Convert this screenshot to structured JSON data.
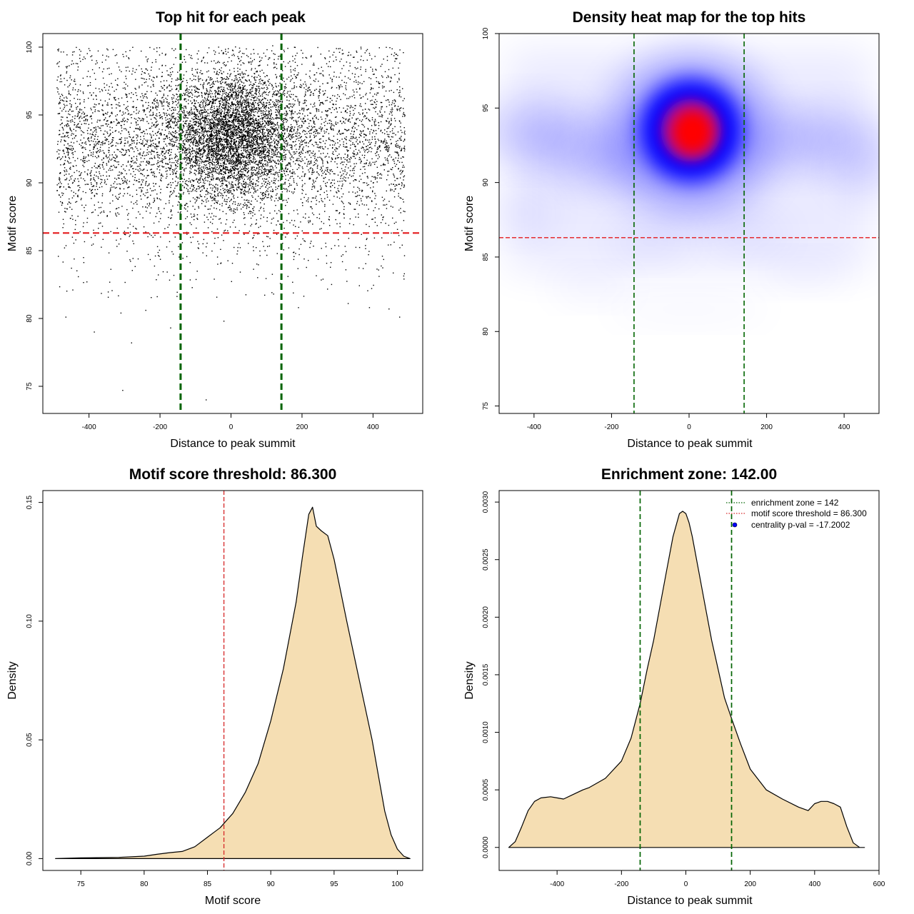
{
  "chart_data": [
    {
      "type": "scatter",
      "title": "Top hit for each peak",
      "xlabel": "Distance to peak summit",
      "ylabel": "Motif score",
      "xlim": [
        -530,
        540
      ],
      "ylim": [
        73,
        101
      ],
      "xticks": [
        -400,
        -200,
        0,
        200,
        400
      ],
      "yticks": [
        75,
        80,
        85,
        90,
        95,
        100
      ],
      "hline": {
        "y": 86.3,
        "color": "#e41a1c"
      },
      "vlines": [
        {
          "x": -142,
          "color": "#006400"
        },
        {
          "x": 142,
          "color": "#006400"
        }
      ],
      "point_color": "#000000",
      "points_description": "approx. 10000 top hits; dense cluster centred near distance 0 and score 93-94, uniform background across -490 to 490",
      "outlier_points": [
        {
          "x": -305,
          "y": 74.7
        },
        {
          "x": -70,
          "y": 74.0
        },
        {
          "x": -385,
          "y": 79.0
        },
        {
          "x": -280,
          "y": 78.2
        },
        {
          "x": -170,
          "y": 79.3
        },
        {
          "x": -465,
          "y": 80.1
        },
        {
          "x": -310,
          "y": 80.4
        },
        {
          "x": -240,
          "y": 80.6
        },
        {
          "x": 190,
          "y": 80.8
        },
        {
          "x": 445,
          "y": 80.7
        },
        {
          "x": 475,
          "y": 80.1
        },
        {
          "x": 390,
          "y": 80.8
        },
        {
          "x": -20,
          "y": 79.8
        },
        {
          "x": 120,
          "y": 81.8
        },
        {
          "x": 330,
          "y": 81.1
        }
      ]
    },
    {
      "type": "heatmap",
      "title": "Density heat map for the top hits",
      "xlabel": "Distance to peak summit",
      "ylabel": "Motif score",
      "xlim": [
        -490,
        490
      ],
      "ylim": [
        74.5,
        100
      ],
      "xticks": [
        -400,
        -200,
        0,
        200,
        400
      ],
      "yticks": [
        75,
        80,
        85,
        90,
        95,
        100
      ],
      "colors": [
        "#ffffff",
        "#0000ff",
        "#ff0000"
      ],
      "hotspot": {
        "x": 5,
        "y": 93.5
      },
      "hline": {
        "y": 86.3,
        "color": "#e41a1c"
      },
      "vlines": [
        {
          "x": -142,
          "color": "#006400"
        },
        {
          "x": 142,
          "color": "#006400"
        }
      ]
    },
    {
      "type": "area",
      "title": "Motif score threshold: 86.300",
      "xlabel": "Motif score",
      "ylabel": "Density",
      "xlim": [
        72,
        102
      ],
      "ylim": [
        -0.005,
        0.155
      ],
      "xticks": [
        75,
        80,
        85,
        90,
        95,
        100
      ],
      "yticks": [
        0.0,
        0.05,
        0.1,
        0.15
      ],
      "ytick_labels": [
        "0.00",
        "0.05",
        "0.10",
        "0.15"
      ],
      "fill": "#f5deb3",
      "vline": {
        "x": 86.3,
        "color": "#d62728"
      },
      "x": [
        73,
        75,
        78,
        80,
        81,
        82,
        83,
        84,
        85,
        85.5,
        86,
        86.5,
        87,
        88,
        89,
        90,
        91,
        92,
        92.5,
        93,
        93.3,
        93.6,
        94,
        94.5,
        95,
        96,
        97,
        98,
        98.5,
        99,
        99.5,
        100,
        100.5,
        101
      ],
      "y": [
        0.0,
        0.0003,
        0.0005,
        0.001,
        0.0018,
        0.0025,
        0.003,
        0.005,
        0.009,
        0.011,
        0.013,
        0.016,
        0.019,
        0.028,
        0.04,
        0.058,
        0.08,
        0.108,
        0.127,
        0.145,
        0.148,
        0.14,
        0.138,
        0.136,
        0.126,
        0.1,
        0.075,
        0.05,
        0.035,
        0.02,
        0.01,
        0.004,
        0.001,
        0.0
      ]
    },
    {
      "type": "area",
      "title": "Enrichment zone: 142.00",
      "xlabel": "Distance to peak summit",
      "ylabel": "Density",
      "xlim": [
        -580,
        600
      ],
      "ylim": [
        -0.0002,
        0.0031
      ],
      "xticks": [
        -400,
        -200,
        0,
        200,
        400,
        600
      ],
      "yticks": [
        0.0,
        0.0005,
        0.001,
        0.0015,
        0.002,
        0.0025,
        0.003
      ],
      "ytick_labels": [
        "0.0000",
        "0.0005",
        "0.0010",
        "0.0015",
        "0.0020",
        "0.0025",
        "0.0030"
      ],
      "fill": "#f5deb3",
      "vlines": [
        {
          "x": -142,
          "color": "#006400"
        },
        {
          "x": 142,
          "color": "#006400"
        }
      ],
      "x": [
        -550,
        -530,
        -510,
        -490,
        -470,
        -450,
        -420,
        -400,
        -380,
        -350,
        -320,
        -300,
        -250,
        -200,
        -170,
        -142,
        -120,
        -100,
        -80,
        -60,
        -40,
        -20,
        -10,
        0,
        10,
        20,
        40,
        60,
        80,
        100,
        120,
        142,
        170,
        200,
        250,
        300,
        350,
        380,
        400,
        420,
        440,
        460,
        480,
        500,
        520,
        540,
        555
      ],
      "y": [
        0.0,
        5e-05,
        0.00018,
        0.00032,
        0.0004,
        0.00043,
        0.00044,
        0.00043,
        0.00042,
        0.00046,
        0.0005,
        0.00052,
        0.0006,
        0.00075,
        0.00095,
        0.00125,
        0.00155,
        0.0018,
        0.0021,
        0.0024,
        0.0027,
        0.0029,
        0.00292,
        0.0029,
        0.00282,
        0.0027,
        0.0024,
        0.0021,
        0.0018,
        0.00155,
        0.0013,
        0.00112,
        0.0009,
        0.00068,
        0.0005,
        0.00042,
        0.00035,
        0.00032,
        0.00038,
        0.0004,
        0.0004,
        0.00038,
        0.00035,
        0.00018,
        4e-05,
        0.0,
        0.0
      ],
      "legend": {
        "position": "top-right",
        "items": [
          {
            "label": "enrichment zone = 142",
            "color": "#006400",
            "kind": "dotted-line"
          },
          {
            "label": "motif score threshold = 86.300",
            "color": "#d62728",
            "kind": "dotted-line"
          },
          {
            "label": "centrality p-val = -17.2002",
            "color": "#0000ff",
            "kind": "point"
          }
        ]
      }
    }
  ]
}
